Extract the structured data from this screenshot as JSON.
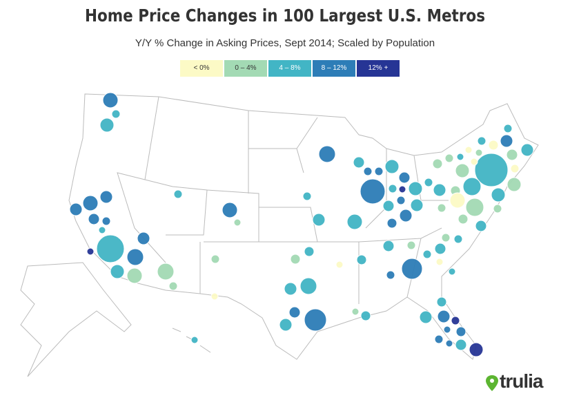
{
  "header": {
    "title": "Home Price Changes in 100 Largest U.S. Metros",
    "subtitle": "Y/Y % Change in Asking Prices, Sept 2014; Scaled by Population"
  },
  "legend": {
    "items": [
      {
        "label": "< 0%",
        "color": "#fcfac6"
      },
      {
        "label": "0 – 4%",
        "color": "#a3dab4"
      },
      {
        "label": "4 – 8%",
        "color": "#42b5c5"
      },
      {
        "label": "8 – 12%",
        "color": "#2d7db7"
      },
      {
        "label": "12% +",
        "color": "#263595"
      }
    ]
  },
  "logo": {
    "text": "trulia"
  }
}
